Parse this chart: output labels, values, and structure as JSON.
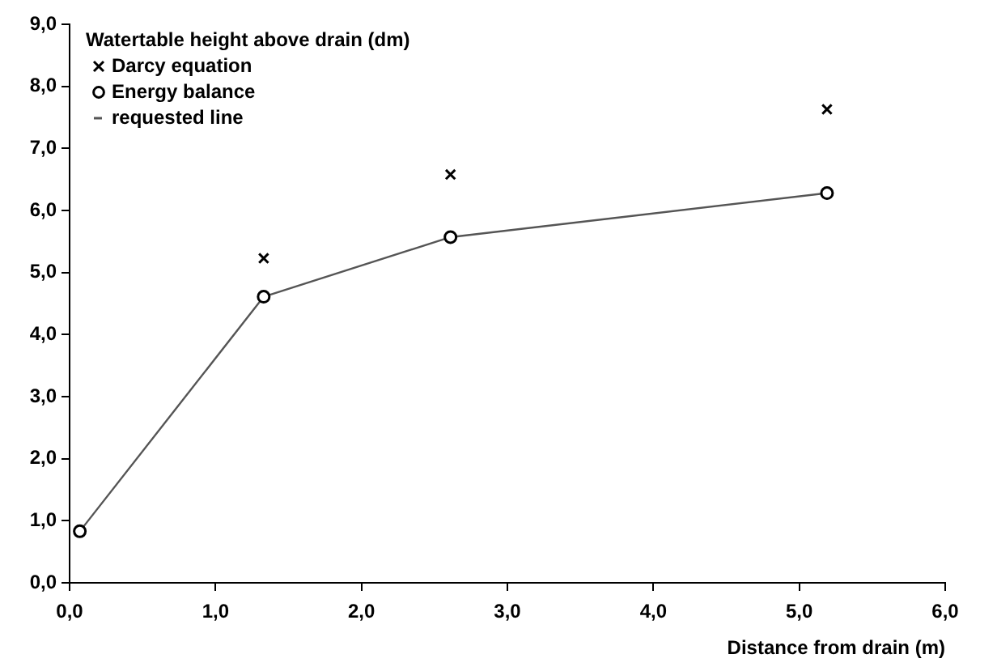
{
  "chart_data": {
    "type": "scatter",
    "xlabel": "Distance from drain (m)",
    "ylabel": "Watertable height above drain (dm)",
    "xlim": [
      0,
      6
    ],
    "xticks": [
      {
        "value": 0,
        "label": "0,0"
      },
      {
        "value": 1,
        "label": "1,0"
      },
      {
        "value": 2,
        "label": "2,0"
      },
      {
        "value": 3,
        "label": "3,0"
      },
      {
        "value": 4,
        "label": "4,0"
      },
      {
        "value": 5,
        "label": "5,0"
      },
      {
        "value": 6,
        "label": "6,0"
      }
    ],
    "ylim": [
      0,
      9
    ],
    "yticks": [
      {
        "value": 0,
        "label": "0,0"
      },
      {
        "value": 1,
        "label": "1,0"
      },
      {
        "value": 2,
        "label": "2,0"
      },
      {
        "value": 3,
        "label": "3,0"
      },
      {
        "value": 4,
        "label": "4,0"
      },
      {
        "value": 5,
        "label": "5,0"
      },
      {
        "value": 6,
        "label": "6,0"
      },
      {
        "value": 7,
        "label": "7,0"
      },
      {
        "value": 8,
        "label": "8,0"
      },
      {
        "value": 9,
        "label": "9,0"
      }
    ],
    "grid": false,
    "legend": "top left",
    "series": [
      {
        "name": "Darcy equation",
        "marker": "cross",
        "color": "#000000",
        "x": [
          1.33,
          2.61,
          5.19
        ],
        "values": [
          5.23,
          6.58,
          7.63
        ]
      },
      {
        "name": "Energy balance",
        "marker": "circle",
        "color": "#000000",
        "x": [
          0.07,
          1.33,
          2.61,
          5.19
        ],
        "values": [
          0.83,
          4.61,
          5.57,
          6.28
        ]
      },
      {
        "name": "requested line",
        "type": "line",
        "marker": "none",
        "color": "#555555",
        "x": [
          0.07,
          1.33,
          2.61,
          5.19
        ],
        "values": [
          0.83,
          4.61,
          5.57,
          6.28
        ]
      }
    ]
  }
}
